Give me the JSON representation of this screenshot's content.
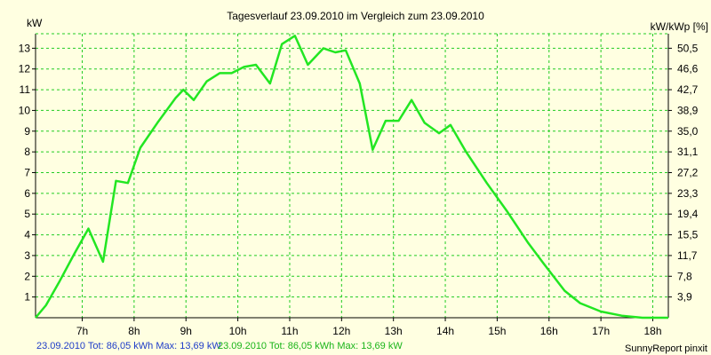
{
  "chart_data": {
    "type": "line",
    "title": "Tagesverlauf 23.09.2010 im Vergleich zum 23.09.2010",
    "ylabel_left": "kW",
    "ylabel_right": "kW/kWp [%]",
    "ylim": [
      0,
      13.7
    ],
    "xlim": [
      6.1,
      18.3
    ],
    "x_ticks": [
      7,
      8,
      9,
      10,
      11,
      12,
      13,
      14,
      15,
      16,
      17,
      18
    ],
    "x_tick_labels": [
      "7h",
      "8h",
      "9h",
      "10h",
      "11h",
      "12h",
      "13h",
      "14h",
      "15h",
      "16h",
      "17h",
      "18h"
    ],
    "y_ticks_left": [
      1,
      2,
      3,
      4,
      5,
      6,
      7,
      8,
      9,
      10,
      11,
      12,
      13
    ],
    "y_ticks_right": [
      {
        "value": 1,
        "label": "3,9"
      },
      {
        "value": 2,
        "label": "7,8"
      },
      {
        "value": 3,
        "label": "11,7"
      },
      {
        "value": 4,
        "label": "15,5"
      },
      {
        "value": 5,
        "label": "19,4"
      },
      {
        "value": 6,
        "label": "23,3"
      },
      {
        "value": 7,
        "label": "27,2"
      },
      {
        "value": 8,
        "label": "31,1"
      },
      {
        "value": 9,
        "label": "35,0"
      },
      {
        "value": 10,
        "label": "38,9"
      },
      {
        "value": 11,
        "label": "42,7"
      },
      {
        "value": 12,
        "label": "46,6"
      },
      {
        "value": 13,
        "label": "50,5"
      }
    ],
    "grid": true,
    "colors": {
      "background": "#ffffe1",
      "series": "#22e622",
      "grid": "#22cc22",
      "axis": "#000000"
    },
    "series": [
      {
        "x": [
          6.1,
          6.3,
          6.55,
          6.85,
          7.12,
          7.4,
          7.65,
          7.88,
          8.12,
          8.45,
          8.8,
          8.95,
          9.15,
          9.4,
          9.65,
          9.88,
          10.12,
          10.35,
          10.62,
          10.85,
          11.1,
          11.35,
          11.65,
          11.88,
          12.08,
          12.35,
          12.6,
          12.85,
          13.1,
          13.35,
          13.6,
          13.88,
          14.1,
          14.4,
          14.8,
          15.2,
          15.6,
          15.9,
          16.3,
          16.6,
          17.0,
          17.4,
          17.8,
          18.0,
          18.3
        ],
        "values": [
          0.0,
          0.6,
          1.7,
          3.1,
          4.3,
          2.7,
          6.6,
          6.5,
          8.2,
          9.4,
          10.6,
          11.0,
          10.5,
          11.4,
          11.8,
          11.8,
          12.1,
          12.2,
          11.3,
          13.2,
          13.6,
          12.2,
          13.0,
          12.8,
          12.9,
          11.3,
          8.1,
          9.5,
          9.5,
          10.5,
          9.4,
          8.9,
          9.3,
          8.0,
          6.5,
          5.1,
          3.6,
          2.6,
          1.3,
          0.7,
          0.3,
          0.1,
          0.0,
          0.0,
          0.0
        ]
      }
    ]
  },
  "footer": {
    "left_stats": "23.09.2010 Tot: 86,05 kWh Max: 13,69 kW",
    "right_stats": "23.09.2010 Tot: 86,05 kWh Max: 13,69 kW",
    "brand": "SunnyReport pinxit"
  }
}
